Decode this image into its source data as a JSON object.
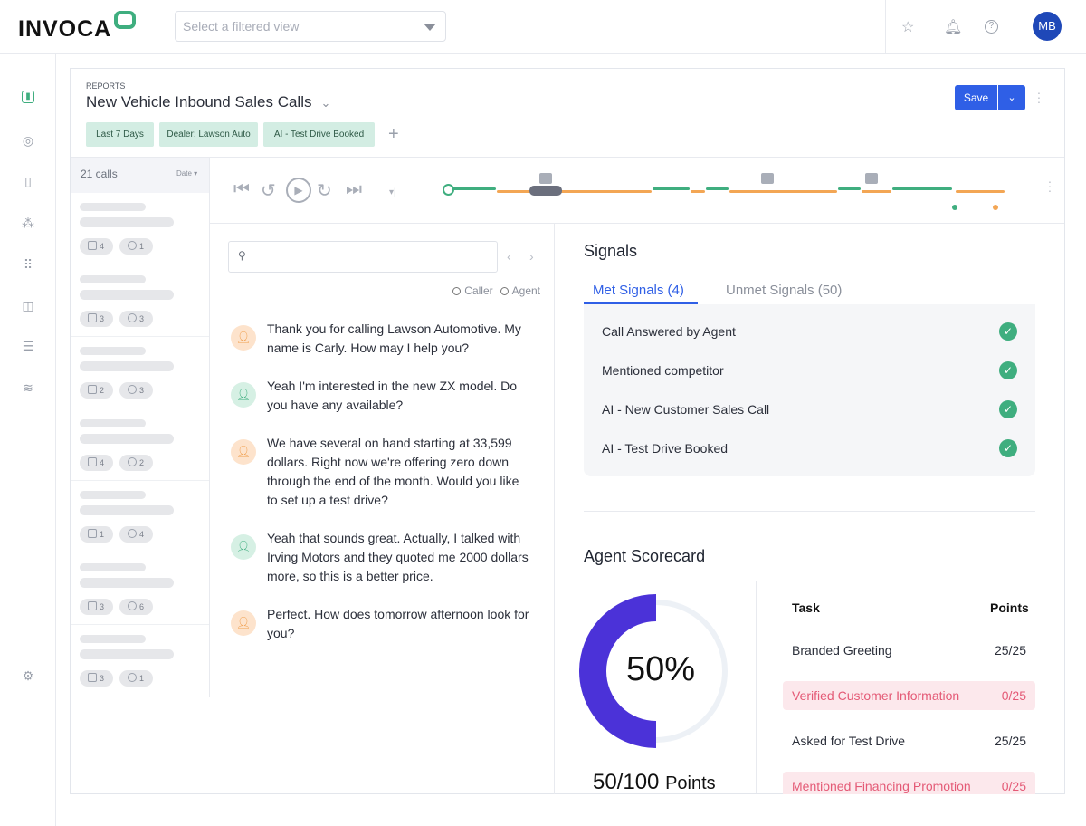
{
  "topbar": {
    "logo": "INVOCA",
    "filter_placeholder": "Select a filtered view",
    "icons": [
      "star-icon",
      "bell-icon",
      "help-icon"
    ],
    "avatar": "MB"
  },
  "sidebar": {
    "icons": [
      "reports-icon",
      "user-icon",
      "phone-icon",
      "team-icon",
      "apps-icon",
      "analytics-icon",
      "sliders-icon",
      "signal-icon",
      "settings-icon"
    ]
  },
  "report": {
    "breadcrumb": "REPORTS",
    "title": "New Vehicle Inbound Sales Calls",
    "filters": [
      "Last 7 Days",
      "Dealer: Lawson Auto",
      "AI - Test Drive Booked"
    ],
    "save": "Save"
  },
  "calls": {
    "count": "21 calls",
    "sort": "Date",
    "items": [
      {
        "signals": "4",
        "comments": "1"
      },
      {
        "signals": "3",
        "comments": "3"
      },
      {
        "signals": "2",
        "comments": "3"
      },
      {
        "signals": "4",
        "comments": "2"
      },
      {
        "signals": "1",
        "comments": "4"
      },
      {
        "signals": "3",
        "comments": "6"
      },
      {
        "signals": "3",
        "comments": "1"
      }
    ]
  },
  "transcript": {
    "legend_caller": "Caller",
    "legend_agent": "Agent",
    "messages": [
      {
        "speaker": "agent",
        "text": "Thank you for calling Lawson Automotive. My name is Carly. How may I help you?"
      },
      {
        "speaker": "caller",
        "text": "Yeah I'm interested in the new ZX model. Do you have any available?"
      },
      {
        "speaker": "agent",
        "text": "We have several on hand starting at 33,599 dollars. Right now we're offering zero down through the end of the month. Would you like to set up a test drive?"
      },
      {
        "speaker": "caller",
        "text": "Yeah that sounds great. Actually, I talked with Irving Motors and they quoted me 2000 dollars more, so this is a better price."
      },
      {
        "speaker": "agent",
        "text": "Perfect. How does tomorrow afternoon look for you?"
      }
    ]
  },
  "signals": {
    "title": "Signals",
    "tab_met": "Met Signals (4)",
    "tab_unmet": "Unmet Signals (50)",
    "met": [
      "Call Answered by Agent",
      "Mentioned competitor",
      "AI - New Customer Sales Call",
      "AI - Test Drive Booked"
    ]
  },
  "scorecard": {
    "title": "Agent Scorecard",
    "percent": "50%",
    "percent_value": 50,
    "points": "50/100",
    "points_label": "Points",
    "col_task": "Task",
    "col_points": "Points",
    "rows": [
      {
        "task": "Branded Greeting",
        "points": "25/25",
        "met": true
      },
      {
        "task": "Verified Customer Information",
        "points": "0/25",
        "met": false
      },
      {
        "task": "Asked for Test Drive",
        "points": "25/25",
        "met": true
      },
      {
        "task": "Mentioned Financing Promotion",
        "points": "0/25",
        "met": false
      }
    ]
  },
  "colors": {
    "accent": "#2f5fe6",
    "caller": "#3fae7f",
    "agent": "#f3a654",
    "score": "#4b32d8",
    "fail": "#e45a76"
  }
}
